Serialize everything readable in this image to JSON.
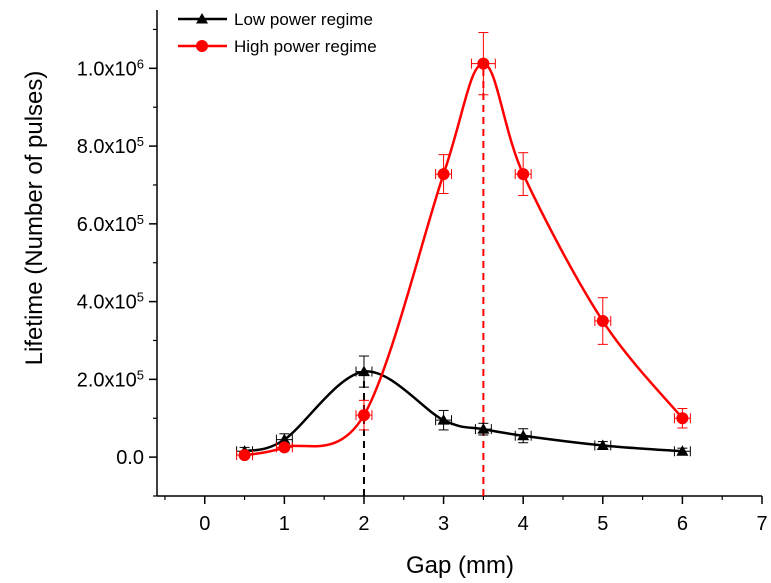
{
  "chart_data": {
    "type": "line",
    "title": "",
    "xlabel": "Gap (mm)",
    "ylabel": "Lifetime (Number of pulses)",
    "xlim": [
      -0.6,
      7.0
    ],
    "ylim": [
      -100000,
      1150000
    ],
    "x_ticks": [
      0,
      1,
      2,
      3,
      4,
      5,
      6,
      7
    ],
    "x_tick_labels": [
      "0",
      "1",
      "2",
      "3",
      "4",
      "5",
      "6",
      "7"
    ],
    "y_ticks": [
      0,
      200000,
      400000,
      600000,
      800000,
      1000000
    ],
    "y_tick_labels": [
      {
        "mantissa": "0.0",
        "exp": ""
      },
      {
        "mantissa": "2.0x10",
        "exp": "5"
      },
      {
        "mantissa": "4.0x10",
        "exp": "5"
      },
      {
        "mantissa": "6.0x10",
        "exp": "5"
      },
      {
        "mantissa": "8.0x10",
        "exp": "5"
      },
      {
        "mantissa": "1.0x10",
        "exp": "6"
      }
    ],
    "legend_position": "top-left",
    "series": [
      {
        "name": "Low power regime",
        "color": "#000000",
        "marker": "triangle",
        "x": [
          0.5,
          1,
          2,
          3,
          3.5,
          4,
          5,
          6
        ],
        "y": [
          15000,
          45000,
          220000,
          95000,
          72000,
          55000,
          30000,
          15000
        ],
        "y_err": [
          10000,
          15000,
          40000,
          25000,
          15000,
          18000,
          10000,
          8000
        ],
        "x_err": [
          0.1,
          0.1,
          0.1,
          0.1,
          0.1,
          0.1,
          0.1,
          0.1
        ]
      },
      {
        "name": "High power regime",
        "color": "#ff0000",
        "marker": "circle",
        "x": [
          0.5,
          1,
          2,
          3,
          3.5,
          4,
          5,
          6
        ],
        "y": [
          5000,
          25000,
          108000,
          728000,
          1012000,
          728000,
          350000,
          100000
        ],
        "y_err": [
          5000,
          8000,
          38000,
          50000,
          80000,
          55000,
          60000,
          25000
        ],
        "x_err": [
          0.1,
          0.1,
          0.1,
          0.1,
          0.15,
          0.1,
          0.1,
          0.1
        ]
      }
    ],
    "annotations": [
      {
        "type": "dashed-vline",
        "x": 2,
        "color": "#000000"
      },
      {
        "type": "dashed-vline",
        "x": 3.5,
        "color": "#ff0000"
      }
    ]
  }
}
